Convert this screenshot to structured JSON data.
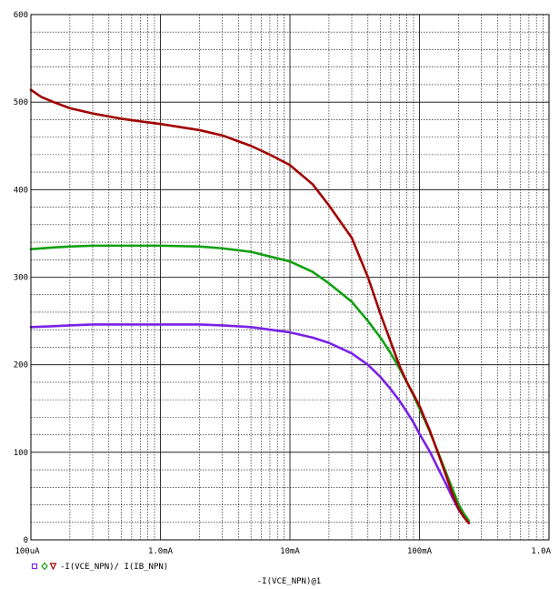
{
  "chart_data": {
    "type": "line",
    "x_scale": "log",
    "xlim": [
      0.0001,
      1.0
    ],
    "ylim": [
      0,
      600
    ],
    "x_ticks": [
      {
        "value": 0.0001,
        "label": "100uA"
      },
      {
        "value": 0.001,
        "label": "1.0mA"
      },
      {
        "value": 0.01,
        "label": "10mA"
      },
      {
        "value": 0.1,
        "label": "100mA"
      },
      {
        "value": 1.0,
        "label": "1.0A"
      }
    ],
    "y_ticks": [
      {
        "value": 0,
        "label": "0"
      },
      {
        "value": 100,
        "label": "100"
      },
      {
        "value": 200,
        "label": "200"
      },
      {
        "value": 300,
        "label": "300"
      },
      {
        "value": 400,
        "label": "400"
      },
      {
        "value": 500,
        "label": "500"
      },
      {
        "value": 600,
        "label": "600"
      }
    ],
    "xlabel": "-I(VCE_NPN)@1",
    "ylabel": "",
    "grid": true,
    "legend": {
      "placement": "bottom-left",
      "text": "-I(VCE_NPN)/ I(IB_NPN)",
      "markers": [
        {
          "shape": "square",
          "color": "#7a22e6"
        },
        {
          "shape": "diamond",
          "color": "#12a012"
        },
        {
          "shape": "triangle-down",
          "color": "#a00000"
        }
      ]
    },
    "series": [
      {
        "color": "#7a22e6",
        "points": [
          [
            0.0001,
            243
          ],
          [
            0.00015,
            244
          ],
          [
            0.0002,
            245
          ],
          [
            0.0003,
            246
          ],
          [
            0.0005,
            246
          ],
          [
            0.001,
            246
          ],
          [
            0.002,
            246
          ],
          [
            0.003,
            245
          ],
          [
            0.005,
            243
          ],
          [
            0.01,
            237
          ],
          [
            0.015,
            231
          ],
          [
            0.02,
            225
          ],
          [
            0.03,
            213
          ],
          [
            0.04,
            200
          ],
          [
            0.05,
            186
          ],
          [
            0.06,
            172
          ],
          [
            0.07,
            159
          ],
          [
            0.08,
            146
          ],
          [
            0.09,
            134
          ],
          [
            0.1,
            121
          ],
          [
            0.12,
            101
          ],
          [
            0.14,
            81
          ],
          [
            0.16,
            64
          ],
          [
            0.18,
            48
          ],
          [
            0.2,
            35
          ],
          [
            0.22,
            26
          ],
          [
            0.24,
            20
          ]
        ]
      },
      {
        "color": "#12a012",
        "points": [
          [
            0.0001,
            332
          ],
          [
            0.00015,
            334
          ],
          [
            0.0002,
            335
          ],
          [
            0.0003,
            336
          ],
          [
            0.0005,
            336
          ],
          [
            0.001,
            336
          ],
          [
            0.002,
            335
          ],
          [
            0.003,
            333
          ],
          [
            0.005,
            329
          ],
          [
            0.01,
            318
          ],
          [
            0.015,
            306
          ],
          [
            0.02,
            293
          ],
          [
            0.03,
            272
          ],
          [
            0.04,
            250
          ],
          [
            0.05,
            231
          ],
          [
            0.06,
            213
          ],
          [
            0.07,
            196
          ],
          [
            0.08,
            180
          ],
          [
            0.09,
            165
          ],
          [
            0.1,
            150
          ],
          [
            0.12,
            124
          ],
          [
            0.14,
            99
          ],
          [
            0.16,
            77
          ],
          [
            0.18,
            58
          ],
          [
            0.2,
            41
          ],
          [
            0.22,
            30
          ],
          [
            0.24,
            22
          ]
        ]
      },
      {
        "color": "#a00000",
        "points": [
          [
            0.0001,
            514
          ],
          [
            0.00012,
            506
          ],
          [
            0.00015,
            500
          ],
          [
            0.0002,
            493
          ],
          [
            0.0003,
            487
          ],
          [
            0.0005,
            481
          ],
          [
            0.0007,
            478
          ],
          [
            0.001,
            475
          ],
          [
            0.002,
            468
          ],
          [
            0.003,
            462
          ],
          [
            0.005,
            450
          ],
          [
            0.007,
            440
          ],
          [
            0.01,
            428
          ],
          [
            0.015,
            406
          ],
          [
            0.02,
            382
          ],
          [
            0.03,
            345
          ],
          [
            0.04,
            300
          ],
          [
            0.05,
            258
          ],
          [
            0.06,
            226
          ],
          [
            0.07,
            199
          ],
          [
            0.08,
            180
          ],
          [
            0.09,
            166
          ],
          [
            0.1,
            153
          ],
          [
            0.12,
            125
          ],
          [
            0.14,
            98
          ],
          [
            0.16,
            74
          ],
          [
            0.18,
            52
          ],
          [
            0.2,
            36
          ],
          [
            0.22,
            26
          ],
          [
            0.24,
            19
          ]
        ]
      }
    ]
  }
}
